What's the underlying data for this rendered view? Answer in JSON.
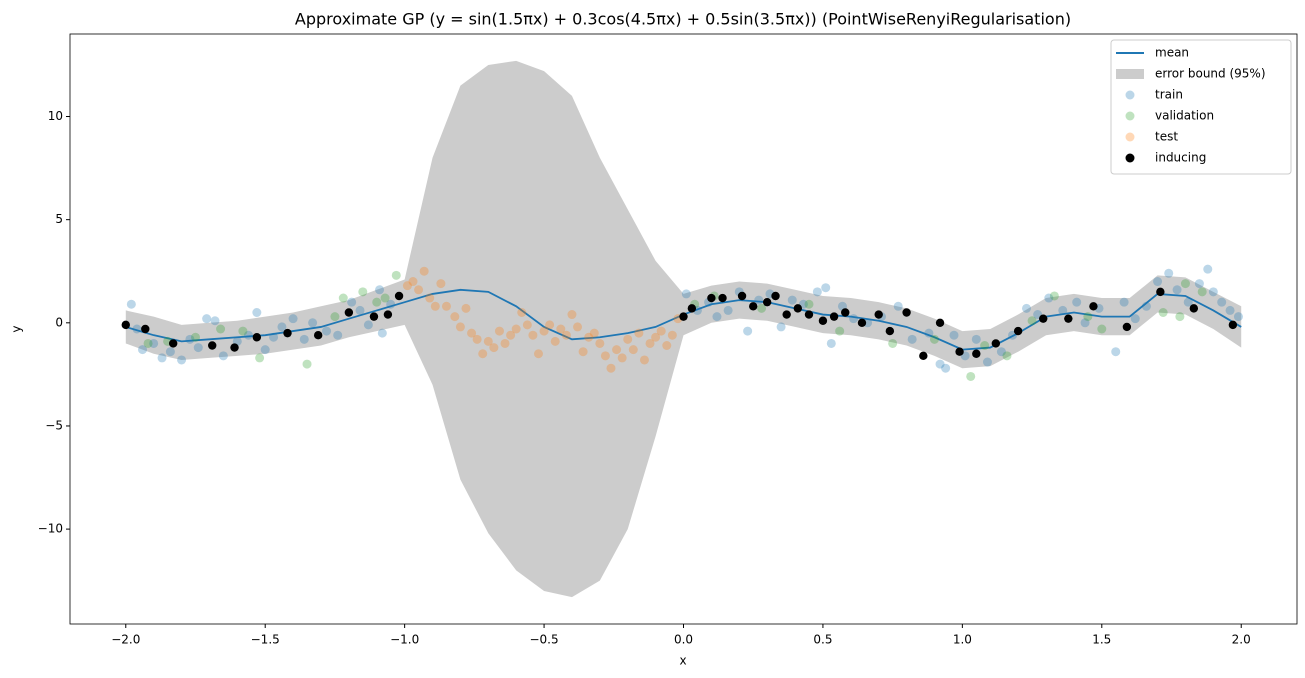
{
  "chart_data": {
    "type": "line",
    "title": "Approximate GP (y = sin(1.5πx) + 0.3cos(4.5πx) + 0.5sin(3.5πx)) (PointWiseRenyiRegularisation)",
    "xlabel": "x",
    "ylabel": "y",
    "xlim": [
      -2.2,
      2.2
    ],
    "ylim": [
      -14.6,
      14.0
    ],
    "xticks": [
      {
        "value": -2,
        "label": "−2.0"
      },
      {
        "value": -1.5,
        "label": "−1.5"
      },
      {
        "value": -1,
        "label": "−1.0"
      },
      {
        "value": -0.5,
        "label": "−0.5"
      },
      {
        "value": 0,
        "label": "0.0"
      },
      {
        "value": 0.5,
        "label": "0.5"
      },
      {
        "value": 1,
        "label": "1.0"
      },
      {
        "value": 1.5,
        "label": "1.5"
      },
      {
        "value": 2,
        "label": "2.0"
      }
    ],
    "yticks": [
      {
        "value": -10,
        "label": "−10"
      },
      {
        "value": -5,
        "label": "−5"
      },
      0,
      5,
      10
    ],
    "legend": "upper right",
    "series": [
      {
        "name": "mean",
        "type": "line",
        "color": "#1f77b4",
        "x": [
          -2.0,
          -1.9,
          -1.8,
          -1.7,
          -1.6,
          -1.5,
          -1.4,
          -1.3,
          -1.2,
          -1.1,
          -1.0,
          -0.9,
          -0.8,
          -0.7,
          -0.6,
          -0.5,
          -0.4,
          -0.3,
          -0.2,
          -0.1,
          0.0,
          0.1,
          0.2,
          0.3,
          0.4,
          0.5,
          0.6,
          0.7,
          0.8,
          0.9,
          1.0,
          1.1,
          1.2,
          1.3,
          1.4,
          1.5,
          1.6,
          1.7,
          1.8,
          1.9,
          2.0
        ],
        "values": [
          -0.2,
          -0.6,
          -0.9,
          -0.8,
          -0.7,
          -0.6,
          -0.4,
          -0.2,
          0.2,
          0.6,
          1.0,
          1.4,
          1.6,
          1.5,
          0.8,
          -0.2,
          -0.8,
          -0.7,
          -0.5,
          -0.2,
          0.4,
          0.9,
          1.1,
          1.0,
          0.7,
          0.4,
          0.3,
          0.1,
          -0.2,
          -0.7,
          -1.3,
          -1.2,
          -0.5,
          0.3,
          0.5,
          0.3,
          0.3,
          1.4,
          1.3,
          0.6,
          -0.2
        ]
      },
      {
        "name": "error bound (95%)",
        "type": "area",
        "color": "#cccccc",
        "x": [
          -2.0,
          -1.9,
          -1.8,
          -1.7,
          -1.6,
          -1.5,
          -1.4,
          -1.3,
          -1.2,
          -1.1,
          -1.0,
          -0.9,
          -0.8,
          -0.7,
          -0.6,
          -0.5,
          -0.4,
          -0.3,
          -0.2,
          -0.1,
          0.0,
          0.1,
          0.2,
          0.3,
          0.4,
          0.5,
          0.6,
          0.7,
          0.8,
          0.9,
          1.0,
          1.1,
          1.2,
          1.3,
          1.4,
          1.5,
          1.6,
          1.7,
          1.8,
          1.9,
          2.0
        ],
        "upper": [
          0.6,
          0.3,
          -0.1,
          0.0,
          0.1,
          0.3,
          0.5,
          0.8,
          1.1,
          1.6,
          2.1,
          8.0,
          11.5,
          12.5,
          12.7,
          12.2,
          11.0,
          8.0,
          5.5,
          3.0,
          1.4,
          1.8,
          2.0,
          1.9,
          1.6,
          1.3,
          1.2,
          1.0,
          0.7,
          0.2,
          -0.4,
          -0.3,
          0.4,
          1.2,
          1.4,
          1.2,
          1.2,
          2.3,
          2.2,
          1.5,
          0.8
        ],
        "lower": [
          -1.0,
          -1.5,
          -1.8,
          -1.7,
          -1.6,
          -1.5,
          -1.3,
          -1.1,
          -0.7,
          -0.4,
          -0.1,
          -3.0,
          -7.6,
          -10.2,
          -12.0,
          -13.0,
          -13.3,
          -12.5,
          -10.0,
          -5.5,
          -0.6,
          0.0,
          0.2,
          0.1,
          -0.2,
          -0.5,
          -0.6,
          -0.8,
          -1.1,
          -1.6,
          -2.2,
          -2.1,
          -1.4,
          -0.6,
          -0.4,
          -0.6,
          -0.6,
          0.5,
          0.4,
          -0.3,
          -1.2
        ]
      },
      {
        "name": "train",
        "type": "scatter",
        "color": "#1f77b4",
        "alpha": 0.3,
        "x": [
          -1.98,
          -1.96,
          -1.94,
          -1.9,
          -1.87,
          -1.84,
          -1.8,
          -1.77,
          -1.74,
          -1.71,
          -1.68,
          -1.65,
          -1.6,
          -1.56,
          -1.53,
          -1.5,
          -1.47,
          -1.44,
          -1.4,
          -1.36,
          -1.33,
          -1.28,
          -1.24,
          -1.19,
          -1.16,
          -1.13,
          -1.09,
          -1.08,
          -1.05,
          0.01,
          0.05,
          0.09,
          0.12,
          0.16,
          0.2,
          0.23,
          0.27,
          0.31,
          0.35,
          0.39,
          0.43,
          0.48,
          0.51,
          0.53,
          0.57,
          0.61,
          0.66,
          0.71,
          0.77,
          0.82,
          0.88,
          0.92,
          0.94,
          0.97,
          1.01,
          1.05,
          1.09,
          1.14,
          1.18,
          1.23,
          1.27,
          1.31,
          1.36,
          1.41,
          1.44,
          1.49,
          1.55,
          1.58,
          1.62,
          1.66,
          1.7,
          1.74,
          1.77,
          1.81,
          1.85,
          1.88,
          1.9,
          1.93,
          1.96,
          1.99
        ],
        "values": [
          0.9,
          -0.3,
          -1.3,
          -1.0,
          -1.7,
          -1.4,
          -1.8,
          -0.8,
          -1.2,
          0.2,
          0.1,
          -1.6,
          -0.9,
          -0.6,
          0.5,
          -1.3,
          -0.7,
          -0.2,
          0.2,
          -0.8,
          0.0,
          -0.4,
          -0.6,
          1.0,
          0.6,
          -0.1,
          1.6,
          -0.5,
          0.9,
          1.4,
          0.6,
          1.0,
          0.3,
          0.6,
          1.5,
          -0.4,
          1.1,
          1.4,
          -0.2,
          1.1,
          0.9,
          1.5,
          1.7,
          -1.0,
          0.8,
          0.2,
          0.0,
          0.3,
          0.8,
          -0.8,
          -0.5,
          -2.0,
          -2.2,
          -0.6,
          -1.6,
          -0.8,
          -1.9,
          -1.4,
          -0.6,
          0.7,
          0.4,
          1.2,
          0.6,
          1.0,
          0.0,
          0.7,
          -1.4,
          1.0,
          0.2,
          0.8,
          2.0,
          2.4,
          1.6,
          1.0,
          1.9,
          2.6,
          1.5,
          1.0,
          0.6,
          0.3
        ]
      },
      {
        "name": "validation",
        "type": "scatter",
        "color": "#2ca02c",
        "alpha": 0.3,
        "x": [
          -1.92,
          -1.85,
          -1.75,
          -1.66,
          -1.58,
          -1.52,
          -1.35,
          -1.25,
          -1.22,
          -1.15,
          -1.1,
          -1.07,
          -1.03,
          0.04,
          0.11,
          0.28,
          0.45,
          0.56,
          0.75,
          0.9,
          1.03,
          1.08,
          1.16,
          1.25,
          1.33,
          1.45,
          1.5,
          1.72,
          1.78,
          1.8,
          1.86
        ],
        "values": [
          -1.0,
          -0.9,
          -0.7,
          -0.3,
          -0.4,
          -1.7,
          -2.0,
          0.3,
          1.2,
          1.5,
          1.0,
          1.2,
          2.3,
          0.9,
          1.3,
          0.7,
          0.9,
          -0.4,
          -1.0,
          -0.8,
          -2.6,
          -1.1,
          -1.6,
          0.1,
          1.3,
          0.3,
          -0.3,
          0.5,
          0.3,
          1.9,
          1.5
        ]
      },
      {
        "name": "test",
        "type": "scatter",
        "color": "#ff7f0e",
        "alpha": 0.3,
        "x": [
          -0.99,
          -0.97,
          -0.95,
          -0.93,
          -0.91,
          -0.89,
          -0.87,
          -0.85,
          -0.82,
          -0.8,
          -0.78,
          -0.76,
          -0.74,
          -0.72,
          -0.7,
          -0.68,
          -0.66,
          -0.64,
          -0.62,
          -0.6,
          -0.58,
          -0.56,
          -0.54,
          -0.52,
          -0.5,
          -0.48,
          -0.46,
          -0.44,
          -0.42,
          -0.4,
          -0.38,
          -0.36,
          -0.34,
          -0.32,
          -0.3,
          -0.28,
          -0.26,
          -0.24,
          -0.22,
          -0.2,
          -0.18,
          -0.16,
          -0.14,
          -0.12,
          -0.1,
          -0.08,
          -0.06,
          -0.04,
          -0.02
        ],
        "values": [
          1.8,
          2.0,
          1.6,
          2.5,
          1.2,
          0.8,
          1.9,
          0.8,
          0.3,
          -0.2,
          0.7,
          -0.5,
          -0.8,
          -1.5,
          -0.9,
          -1.2,
          -0.4,
          -1.0,
          -0.6,
          -0.3,
          0.5,
          -0.1,
          -0.6,
          -1.5,
          -0.4,
          -0.1,
          -0.9,
          -0.3,
          -0.6,
          0.4,
          -0.2,
          -1.4,
          -0.7,
          -0.5,
          -1.0,
          -1.6,
          -2.2,
          -1.3,
          -1.7,
          -0.8,
          -1.3,
          -0.5,
          -1.8,
          -1.0,
          -0.7,
          -0.4,
          -1.1,
          -0.6,
          0.2
        ]
      },
      {
        "name": "inducing",
        "type": "scatter",
        "color": "#000000",
        "alpha": 1,
        "x": [
          -2.0,
          -1.93,
          -1.83,
          -1.69,
          -1.61,
          -1.53,
          -1.42,
          -1.31,
          -1.2,
          -1.11,
          -1.06,
          -1.02,
          0.0,
          0.03,
          0.1,
          0.14,
          0.21,
          0.25,
          0.3,
          0.33,
          0.37,
          0.41,
          0.45,
          0.5,
          0.54,
          0.58,
          0.64,
          0.7,
          0.74,
          0.8,
          0.86,
          0.92,
          0.99,
          1.05,
          1.12,
          1.2,
          1.29,
          1.38,
          1.47,
          1.59,
          1.71,
          1.83,
          1.97
        ],
        "values": [
          -0.1,
          -0.3,
          -1.0,
          -1.1,
          -1.2,
          -0.7,
          -0.5,
          -0.6,
          0.5,
          0.3,
          0.4,
          1.3,
          0.3,
          0.7,
          1.2,
          1.2,
          1.3,
          0.8,
          1.0,
          1.3,
          0.4,
          0.7,
          0.4,
          0.1,
          0.3,
          0.5,
          0.0,
          0.4,
          -0.4,
          0.5,
          -1.6,
          0.0,
          -1.4,
          -1.5,
          -1.0,
          -0.4,
          0.2,
          0.2,
          0.8,
          -0.2,
          1.5,
          0.7,
          -0.1
        ]
      }
    ]
  }
}
